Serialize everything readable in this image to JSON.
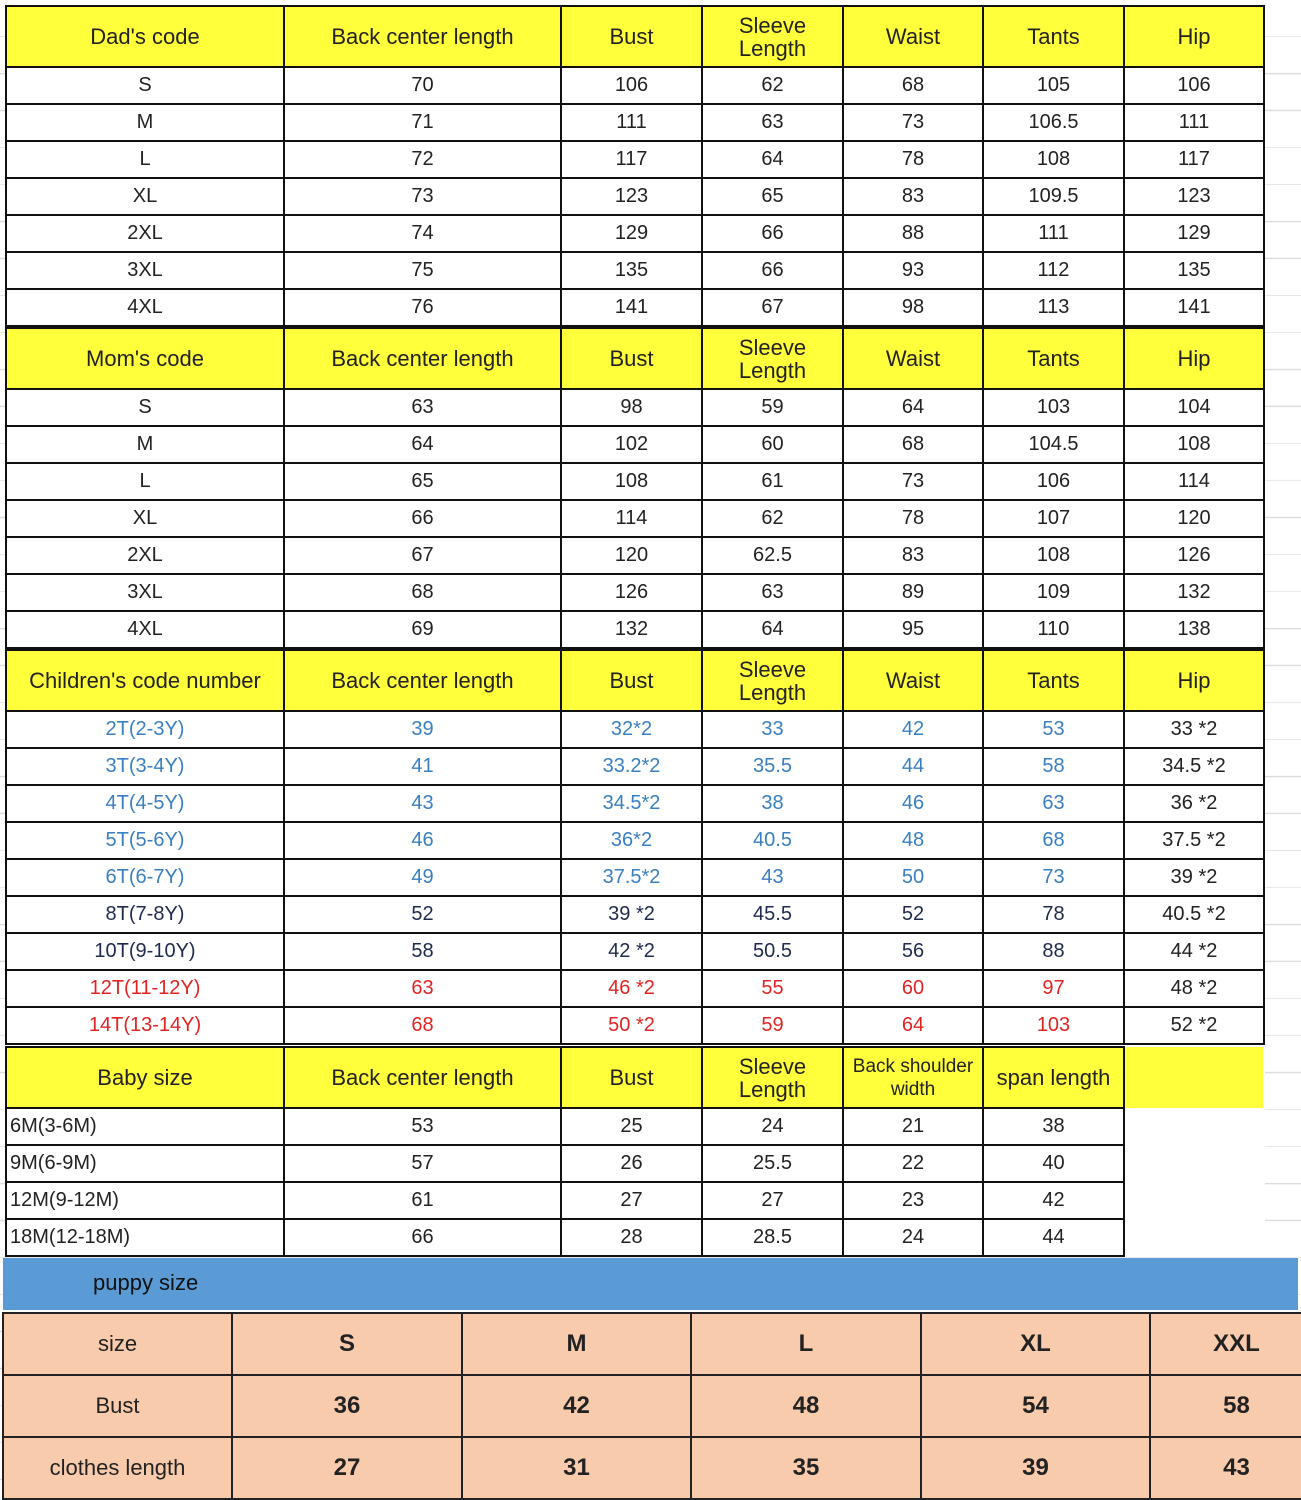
{
  "columns_std": [
    "Back center length",
    "Bust",
    "Sleeve Length",
    "Waist",
    "Tants",
    "Hip"
  ],
  "sections": [
    {
      "id": "dad",
      "title": "Dad's code",
      "headers": [
        "Back center length",
        "Bust",
        "Sleeve Length",
        "Waist",
        "Tants",
        "Hip"
      ],
      "rows": [
        {
          "cells": [
            "S",
            "70",
            "106",
            "62",
            "68",
            "105",
            "106"
          ]
        },
        {
          "cells": [
            "M",
            "71",
            "111",
            "63",
            "73",
            "106.5",
            "111"
          ]
        },
        {
          "cells": [
            "L",
            "72",
            "117",
            "64",
            "78",
            "108",
            "117"
          ]
        },
        {
          "cells": [
            "XL",
            "73",
            "123",
            "65",
            "83",
            "109.5",
            "123"
          ]
        },
        {
          "cells": [
            "2XL",
            "74",
            "129",
            "66",
            "88",
            "111",
            "129"
          ]
        },
        {
          "cells": [
            "3XL",
            "75",
            "135",
            "66",
            "93",
            "112",
            "135"
          ]
        },
        {
          "cells": [
            "4XL",
            "76",
            "141",
            "67",
            "98",
            "113",
            "141"
          ]
        }
      ]
    },
    {
      "id": "mom",
      "title": "Mom's code",
      "headers": [
        "Back center length",
        "Bust",
        "Sleeve Length",
        "Waist",
        "Tants",
        "Hip"
      ],
      "rows": [
        {
          "cells": [
            "S",
            "63",
            "98",
            "59",
            "64",
            "103",
            "104"
          ]
        },
        {
          "cells": [
            "M",
            "64",
            "102",
            "60",
            "68",
            "104.5",
            "108"
          ]
        },
        {
          "cells": [
            "L",
            "65",
            "108",
            "61",
            "73",
            "106",
            "114"
          ]
        },
        {
          "cells": [
            "XL",
            "66",
            "114",
            "62",
            "78",
            "107",
            "120"
          ]
        },
        {
          "cells": [
            "2XL",
            "67",
            "120",
            "62.5",
            "83",
            "108",
            "126"
          ]
        },
        {
          "cells": [
            "3XL",
            "68",
            "126",
            "63",
            "89",
            "109",
            "132"
          ]
        },
        {
          "cells": [
            "4XL",
            "69",
            "132",
            "64",
            "95",
            "110",
            "138"
          ]
        }
      ]
    },
    {
      "id": "children",
      "title": "Children's code number",
      "headers": [
        "Back center length",
        "Bust",
        "Sleeve Length",
        "Waist",
        "Tants",
        "Hip"
      ],
      "rows": [
        {
          "color": "#3a7fc1",
          "cells": [
            "2T(2-3Y)",
            "39",
            "32*2",
            "33",
            "42",
            "53",
            "33 *2"
          ]
        },
        {
          "color": "#3a7fc1",
          "cells": [
            "3T(3-4Y)",
            "41",
            "33.2*2",
            "35.5",
            "44",
            "58",
            "34.5 *2"
          ]
        },
        {
          "color": "#3a7fc1",
          "cells": [
            "4T(4-5Y)",
            "43",
            "34.5*2",
            "38",
            "46",
            "63",
            "36 *2"
          ]
        },
        {
          "color": "#3a7fc1",
          "cells": [
            "5T(5-6Y)",
            "46",
            "36*2",
            "40.5",
            "48",
            "68",
            "37.5 *2"
          ]
        },
        {
          "color": "#3a7fc1",
          "cells": [
            "6T(6-7Y)",
            "49",
            "37.5*2",
            "43",
            "50",
            "73",
            "39 *2"
          ]
        },
        {
          "color": "#1f2a4d",
          "cells": [
            "8T(7-8Y)",
            "52",
            "39 *2",
            "45.5",
            "52",
            "78",
            "40.5 *2"
          ]
        },
        {
          "color": "#1f2a4d",
          "cells": [
            "10T(9-10Y)",
            "58",
            "42 *2",
            "50.5",
            "56",
            "88",
            "44 *2"
          ]
        },
        {
          "color": "#e02424",
          "cells": [
            "12T(11-12Y)",
            "63",
            "46 *2",
            "55",
            "60",
            "97",
            "48 *2"
          ]
        },
        {
          "color": "#e02424",
          "cells": [
            "14T(13-14Y)",
            "68",
            "50 *2",
            "59",
            "64",
            "103",
            "52 *2"
          ]
        }
      ]
    },
    {
      "id": "baby",
      "title": "Baby size",
      "headers": [
        "Back center length",
        "Bust",
        "Sleeve Length",
        "Back shoulder width",
        "span length"
      ],
      "rows": [
        {
          "cells": [
            "6M(3-6M)",
            "53",
            "25",
            "24",
            "21",
            "38"
          ]
        },
        {
          "cells": [
            "9M(6-9M)",
            "57",
            "26",
            "25.5",
            "22",
            "40"
          ]
        },
        {
          "cells": [
            "12M(9-12M)",
            "61",
            "27",
            "27",
            "23",
            "42"
          ]
        },
        {
          "cells": [
            "18M(12-18M)",
            "66",
            "28",
            "28.5",
            "24",
            "44"
          ]
        }
      ]
    }
  ],
  "puppy": {
    "title": "puppy size",
    "rows": [
      [
        "size",
        "S",
        "M",
        "L",
        "XL",
        "XXL"
      ],
      [
        "Bust",
        "36",
        "42",
        "48",
        "54",
        "58"
      ],
      [
        "clothes length",
        "27",
        "31",
        "35",
        "39",
        "43"
      ]
    ]
  },
  "colors": {
    "header_yellow": "#ffff3c",
    "puppy_blue": "#5b9bd5",
    "puppy_peach": "#f8cbad"
  }
}
